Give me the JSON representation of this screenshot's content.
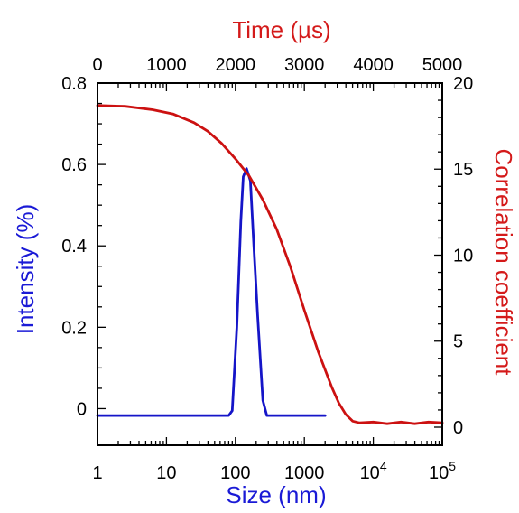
{
  "chart_data": {
    "type": "line",
    "title": "",
    "axes": {
      "bottom": {
        "label": "Size (nm)",
        "scale": "log",
        "range": [
          1,
          100000
        ],
        "ticks": [
          {
            "value": 1,
            "base": "1",
            "exp": ""
          },
          {
            "value": 10,
            "base": "10",
            "exp": ""
          },
          {
            "value": 100,
            "base": "100",
            "exp": ""
          },
          {
            "value": 1000,
            "base": "1000",
            "exp": ""
          },
          {
            "value": 10000,
            "base": "10",
            "exp": "4"
          },
          {
            "value": 100000,
            "base": "10",
            "exp": "5"
          }
        ],
        "color": "#1a1ad6"
      },
      "top": {
        "label": "Time (µs)",
        "scale": "linear",
        "range": [
          0,
          5000
        ],
        "ticks": [
          "0",
          "1000",
          "2000",
          "3000",
          "4000",
          "5000"
        ],
        "color": "#d41a1a"
      },
      "left": {
        "label": "Intensity (%)",
        "scale": "linear",
        "range": [
          -0.09,
          0.8
        ],
        "ticks": [
          "0",
          "0.2",
          "0.4",
          "0.6",
          "0.8"
        ],
        "color": "#1a1ad6"
      },
      "right": {
        "label": "Correlation coefficient",
        "scale": "linear",
        "range": [
          -1.05,
          20
        ],
        "ticks": [
          "0",
          "5",
          "10",
          "15",
          "20"
        ],
        "color": "#d41a1a"
      }
    },
    "series": [
      {
        "axis_x": "bottom",
        "axis_y": "left",
        "color": "#1515c8",
        "x": [
          1,
          80,
          90,
          105,
          120,
          130,
          145,
          165,
          185,
          210,
          250,
          285,
          330,
          2000
        ],
        "y": [
          -0.017,
          -0.017,
          -0.005,
          0.2,
          0.46,
          0.57,
          0.59,
          0.56,
          0.4,
          0.23,
          0.02,
          -0.017,
          -0.017,
          -0.017
        ]
      },
      {
        "axis_x": "top",
        "axis_y": "right",
        "color": "#cc1111",
        "x": [
          0,
          400,
          800,
          1100,
          1400,
          1600,
          1800,
          2000,
          2200,
          2400,
          2600,
          2800,
          3000,
          3200,
          3400,
          3500,
          3600,
          3700,
          3800,
          4000,
          4200,
          4400,
          4600,
          4800,
          5000
        ],
        "y": [
          18.7,
          18.65,
          18.45,
          18.2,
          17.7,
          17.2,
          16.5,
          15.6,
          14.6,
          13.2,
          11.5,
          9.3,
          6.8,
          4.4,
          2.3,
          1.4,
          0.75,
          0.35,
          0.25,
          0.3,
          0.2,
          0.3,
          0.2,
          0.3,
          0.25
        ]
      }
    ]
  }
}
